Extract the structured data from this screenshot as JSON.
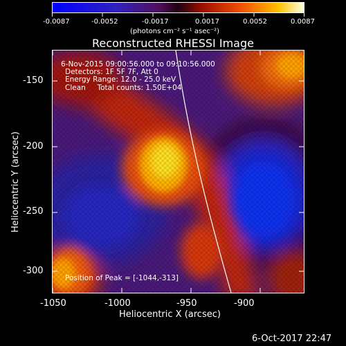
{
  "colorbar": {
    "tick_labels": [
      "-0.0087",
      "-0.0052",
      "-0.0017",
      "0.0017",
      "0.0052",
      "0.0087"
    ],
    "unit_label": "(photons cm⁻² s⁻¹ asec⁻²)"
  },
  "title": "Reconstructed RHESSI Image",
  "overlay": {
    "line1": "6-Nov-2015 09:00:56.000 to 09:10:56.000",
    "line2": "Detectors: 1F 5F 7F, Att 0",
    "line3": "Energy Range: 12.0 - 25.0 keV",
    "line4": "Clean     Total counts: 1.50E+04",
    "peak": "Position of Peak = [-1044,-313]"
  },
  "x_axis": {
    "label": "Heliocentric X (arcsec)",
    "ticks": [
      "-1050",
      "-1000",
      "-950",
      "-900"
    ]
  },
  "y_axis": {
    "label": "Heliocentric Y (arcsec)",
    "ticks": [
      "-150",
      "-200",
      "-250",
      "-300"
    ]
  },
  "timestamp": "6-Oct-2017 22:47",
  "colors": {
    "background": "#000000",
    "foreground": "#ffffff"
  }
}
